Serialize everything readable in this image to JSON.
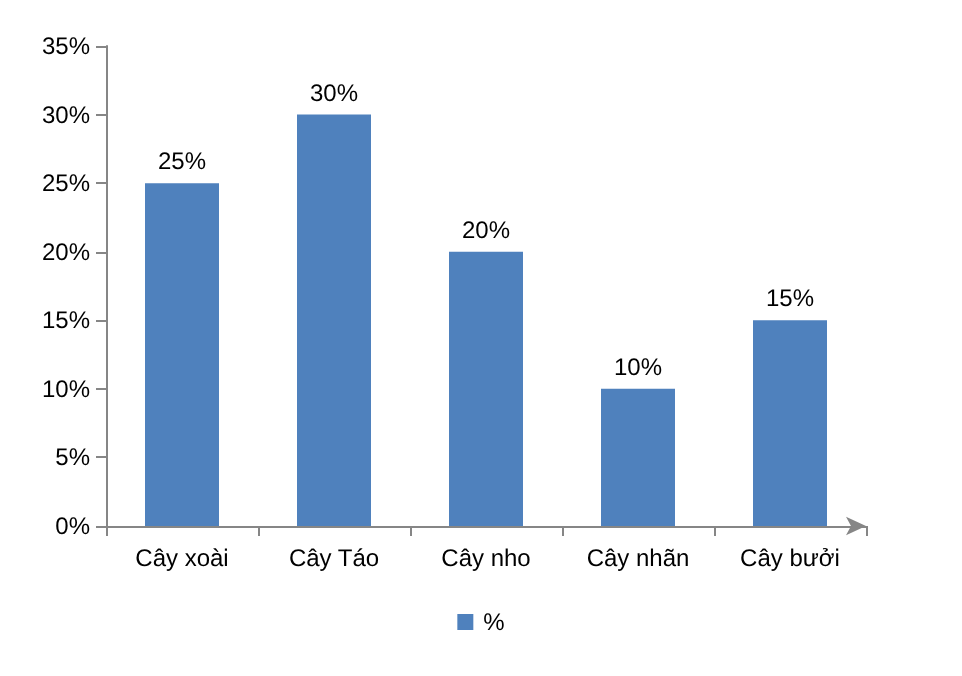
{
  "chart_data": {
    "type": "bar",
    "categories": [
      "Cây xoài",
      "Cây Táo",
      "Cây nho",
      "Cây nhãn",
      "Cây bưởi"
    ],
    "series": [
      {
        "name": "%",
        "color": "#4f81bd",
        "values": [
          25,
          30,
          20,
          10,
          15
        ],
        "value_labels": [
          "25%",
          "30%",
          "20%",
          "10%",
          "15%"
        ]
      }
    ],
    "ylim": [
      0,
      35
    ],
    "yticks": [
      {
        "value": 0,
        "label": "0%"
      },
      {
        "value": 5,
        "label": "5%"
      },
      {
        "value": 10,
        "label": "10%"
      },
      {
        "value": 15,
        "label": "15%"
      },
      {
        "value": 20,
        "label": "20%"
      },
      {
        "value": 25,
        "label": "25%"
      },
      {
        "value": 30,
        "label": "30%"
      },
      {
        "value": 35,
        "label": "35%"
      }
    ],
    "grid": false,
    "legend": "bottom"
  }
}
